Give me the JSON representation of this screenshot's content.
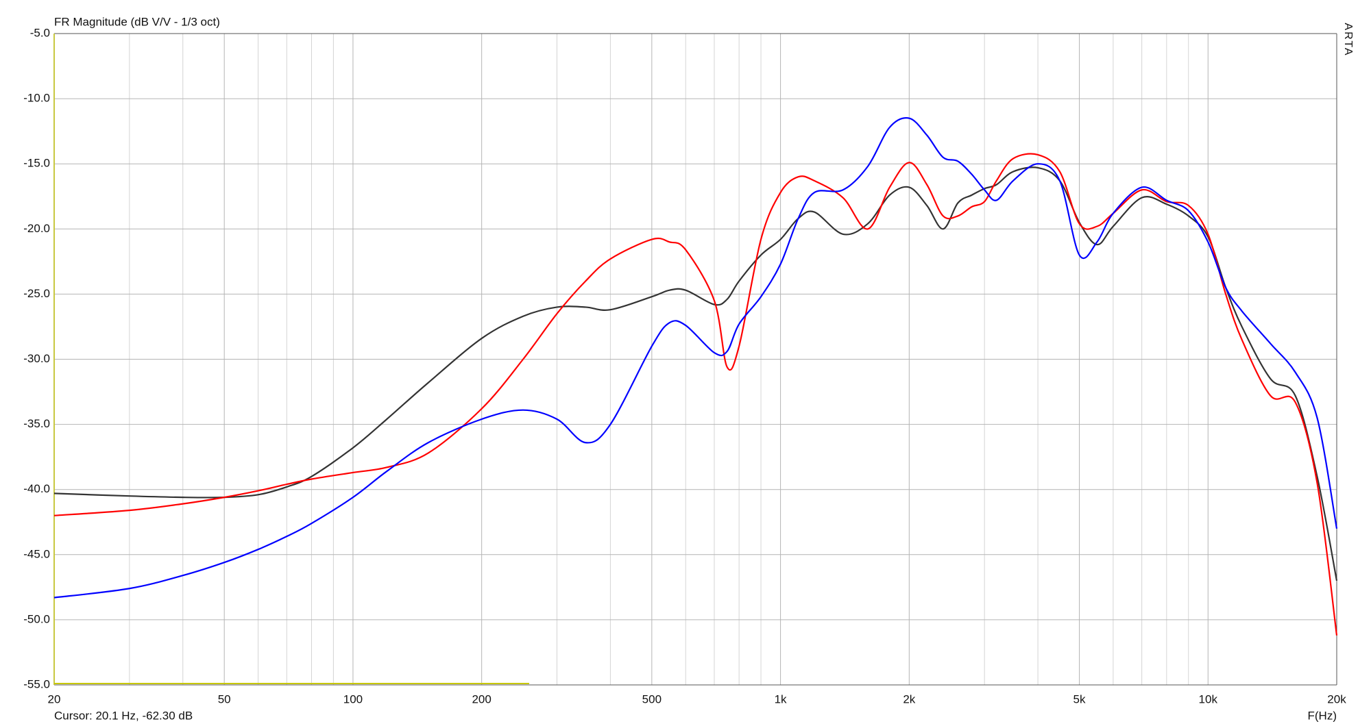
{
  "chart_data": {
    "type": "line",
    "title": "FR Magnitude (dB V/V - 1/3 oct)",
    "x_label": "F(Hz)",
    "watermark": "ARTA",
    "status": "Cursor: 20.1 Hz, -62.30 dB",
    "x_scale": "log",
    "grid": true,
    "x": [
      20,
      30,
      40,
      50,
      60,
      70,
      80,
      100,
      120,
      150,
      200,
      250,
      300,
      350,
      400,
      500,
      550,
      600,
      700,
      750,
      800,
      900,
      1000,
      1100,
      1200,
      1400,
      1600,
      1800,
      2000,
      2200,
      2400,
      2600,
      2800,
      3000,
      3200,
      3500,
      4000,
      4500,
      5000,
      5500,
      6000,
      7000,
      8000,
      9000,
      10000,
      11000,
      12000,
      14000,
      16000,
      18000,
      20000
    ],
    "series": [
      {
        "color": "#333333",
        "values": [
          -40.3,
          -40.5,
          -40.6,
          -40.6,
          -40.4,
          -39.8,
          -39.0,
          -36.8,
          -34.6,
          -31.8,
          -28.4,
          -26.7,
          -26.0,
          -26.0,
          -26.2,
          -25.2,
          -24.7,
          -24.7,
          -25.8,
          -25.4,
          -24.0,
          -22.0,
          -20.8,
          -19.2,
          -18.7,
          -20.4,
          -19.6,
          -17.4,
          -16.8,
          -18.2,
          -20.0,
          -18.0,
          -17.4,
          -16.9,
          -16.6,
          -15.6,
          -15.3,
          -16.3,
          -19.5,
          -21.2,
          -19.8,
          -17.6,
          -18.1,
          -19.0,
          -20.6,
          -24.5,
          -27.5,
          -31.5,
          -32.8,
          -39.0,
          -47.0
        ]
      },
      {
        "color": "#ff0000",
        "values": [
          -42.0,
          -41.6,
          -41.1,
          -40.6,
          -40.1,
          -39.6,
          -39.2,
          -38.7,
          -38.3,
          -37.2,
          -33.8,
          -30.0,
          -26.5,
          -24.0,
          -22.3,
          -20.8,
          -21.0,
          -21.6,
          -25.5,
          -30.6,
          -29.0,
          -20.8,
          -17.2,
          -16.0,
          -16.3,
          -17.6,
          -20.0,
          -16.8,
          -14.9,
          -16.6,
          -19.0,
          -19.0,
          -18.3,
          -17.9,
          -16.3,
          -14.6,
          -14.3,
          -15.6,
          -19.6,
          -19.8,
          -18.8,
          -17.0,
          -17.9,
          -18.2,
          -20.4,
          -25.0,
          -28.5,
          -32.8,
          -33.3,
          -39.5,
          -51.2
        ]
      },
      {
        "color": "#0000ff",
        "values": [
          -48.3,
          -47.6,
          -46.6,
          -45.6,
          -44.6,
          -43.6,
          -42.6,
          -40.6,
          -38.6,
          -36.4,
          -34.6,
          -33.9,
          -34.6,
          -36.4,
          -35.0,
          -29.0,
          -27.2,
          -27.4,
          -29.5,
          -29.4,
          -27.3,
          -25.2,
          -22.7,
          -19.2,
          -17.2,
          -17.0,
          -15.2,
          -12.2,
          -11.5,
          -12.8,
          -14.5,
          -14.8,
          -15.8,
          -17.0,
          -17.8,
          -16.3,
          -15.0,
          -16.3,
          -22.0,
          -21.0,
          -18.8,
          -16.8,
          -17.8,
          -18.6,
          -21.0,
          -24.5,
          -26.3,
          -28.8,
          -31.0,
          -34.5,
          -43.0
        ]
      }
    ],
    "xlim": [
      20,
      20000
    ],
    "ylim": [
      -55,
      -5
    ],
    "xticks": [
      20,
      50,
      100,
      200,
      500,
      {
        "value": 1000,
        "label": "1k"
      },
      {
        "value": 2000,
        "label": "2k"
      },
      {
        "value": 5000,
        "label": "5k"
      },
      {
        "value": 10000,
        "label": "10k"
      },
      {
        "value": 20000,
        "label": "20k"
      }
    ],
    "x_minor_ticks": [
      30,
      40,
      60,
      70,
      80,
      90,
      300,
      400,
      600,
      700,
      800,
      900,
      3000,
      4000,
      6000,
      7000,
      8000,
      9000
    ],
    "yticks": [
      {
        "value": -5,
        "label": "-5.0"
      },
      {
        "value": -10,
        "label": "-10.0"
      },
      {
        "value": -15,
        "label": "-15.0"
      },
      {
        "value": -20,
        "label": "-20.0"
      },
      {
        "value": -25,
        "label": "-25.0"
      },
      {
        "value": -30,
        "label": "-30.0"
      },
      {
        "value": -35,
        "label": "-35.0"
      },
      {
        "value": -40,
        "label": "-40.0"
      },
      {
        "value": -45,
        "label": "-45.0"
      },
      {
        "value": -50,
        "label": "-50.0"
      },
      {
        "value": -55,
        "label": "-55.0"
      }
    ]
  }
}
